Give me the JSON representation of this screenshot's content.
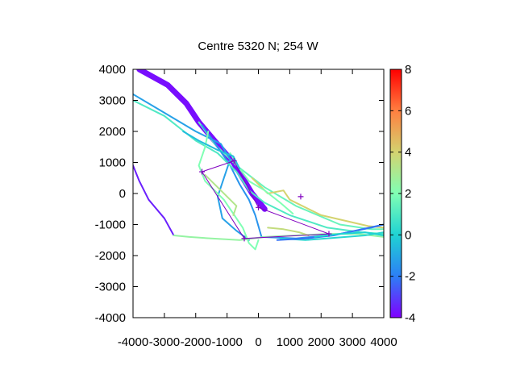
{
  "chart_data": {
    "type": "scatter",
    "title": "Centre 5320 N; 254  W",
    "xlabel": "",
    "ylabel": "",
    "xlim": [
      -4000,
      4000
    ],
    "ylim": [
      -4000,
      4000
    ],
    "xticks": [
      "-4000",
      "-3000",
      "-2000",
      "-1000",
      "0",
      "1000",
      "2000",
      "3000",
      "4000"
    ],
    "yticks": [
      "4000",
      "3000",
      "2000",
      "1000",
      "0",
      "-1000",
      "-2000",
      "-3000",
      "-4000"
    ],
    "colorbar": {
      "range": [
        -4,
        8
      ],
      "ticks": [
        "8",
        "6",
        "4",
        "2",
        "0",
        "-2",
        "-4"
      ],
      "palette": "rainbow",
      "stops": [
        "#8000ff",
        "#2c7ff6",
        "#1fd3d3",
        "#80ffb4",
        "#d4d36f",
        "#ff7f40",
        "#ff0000"
      ]
    },
    "grid": false,
    "legend": "none",
    "markers": [
      {
        "x": 1350,
        "y": -100
      },
      {
        "x": -780,
        "y": 1050
      },
      {
        "x": -1800,
        "y": 700
      },
      {
        "x": 0,
        "y": -450
      },
      {
        "x": 2250,
        "y": -1300
      },
      {
        "x": -450,
        "y": -1450
      }
    ],
    "polygon": [
      {
        "x": -1800,
        "y": 700
      },
      {
        "x": -780,
        "y": 1050
      },
      {
        "x": 0,
        "y": -450
      },
      {
        "x": 2250,
        "y": -1300
      },
      {
        "x": -450,
        "y": -1450
      },
      {
        "x": -1800,
        "y": 700
      }
    ],
    "tracks": [
      {
        "v": -3.8,
        "w": 7,
        "points": [
          [
            -3800,
            4000
          ],
          [
            -2900,
            3500
          ],
          [
            -2300,
            2900
          ],
          [
            -1900,
            2300
          ],
          [
            -1400,
            1700
          ],
          [
            -800,
            1000
          ],
          [
            -200,
            0
          ],
          [
            200,
            -500
          ]
        ]
      },
      {
        "v": 1.5,
        "w": 2,
        "points": [
          [
            -1900,
            2300
          ],
          [
            -1400,
            1600
          ],
          [
            -700,
            900
          ],
          [
            200,
            200
          ],
          [
            1200,
            -400
          ],
          [
            2600,
            -1000
          ],
          [
            3600,
            -1150
          ],
          [
            4000,
            -1150
          ]
        ]
      },
      {
        "v": 4.0,
        "w": 2,
        "points": [
          [
            -200,
            500
          ],
          [
            300,
            0
          ],
          [
            800,
            100
          ],
          [
            1000,
            -200
          ],
          [
            2000,
            -700
          ],
          [
            3500,
            -1050
          ],
          [
            4000,
            -1100
          ]
        ]
      },
      {
        "v": -1.5,
        "w": 2,
        "points": [
          [
            -1800,
            2200
          ],
          [
            -1300,
            1500
          ],
          [
            -900,
            900
          ],
          [
            -600,
            300
          ],
          [
            -300,
            -200
          ],
          [
            -100,
            -700
          ],
          [
            100,
            -1400
          ],
          [
            1200,
            -1450
          ],
          [
            2600,
            -1300
          ],
          [
            3600,
            -1100
          ],
          [
            4000,
            -1000
          ]
        ]
      },
      {
        "v": -1.2,
        "w": 2,
        "points": [
          [
            -4000,
            3200
          ],
          [
            -3000,
            2600
          ],
          [
            -2000,
            2000
          ],
          [
            -1200,
            1600
          ],
          [
            -900,
            1100
          ],
          [
            -1100,
            500
          ],
          [
            -1300,
            -100
          ],
          [
            -1150,
            -800
          ],
          [
            -700,
            -1200
          ],
          [
            -300,
            -1500
          ]
        ]
      },
      {
        "v": 1.0,
        "w": 2,
        "points": [
          [
            -4000,
            3000
          ],
          [
            -3000,
            2500
          ],
          [
            -2000,
            1700
          ],
          [
            -1300,
            1300
          ],
          [
            -700,
            700
          ],
          [
            -300,
            100
          ],
          [
            200,
            -300
          ],
          [
            1000,
            -700
          ],
          [
            2200,
            -1100
          ],
          [
            3300,
            -1250
          ],
          [
            4000,
            -1300
          ]
        ]
      },
      {
        "v": 2.0,
        "w": 2,
        "points": [
          [
            -1600,
            2000
          ],
          [
            -1700,
            1500
          ],
          [
            -1900,
            900
          ],
          [
            -1700,
            400
          ],
          [
            -1100,
            -200
          ],
          [
            -500,
            -1100
          ],
          [
            -300,
            -1600
          ],
          [
            -100,
            -1800
          ],
          [
            0,
            -1500
          ]
        ]
      },
      {
        "v": -3.5,
        "w": 2,
        "points": [
          [
            -4000,
            900
          ],
          [
            -3800,
            400
          ],
          [
            -3500,
            -200
          ],
          [
            -3000,
            -800
          ],
          [
            -2700,
            -1350
          ]
        ]
      },
      {
        "v": 2.5,
        "w": 2,
        "points": [
          [
            -2700,
            -1350
          ],
          [
            -2200,
            -1400
          ],
          [
            -1500,
            -1450
          ],
          [
            -600,
            -1500
          ],
          [
            200,
            -1400
          ],
          [
            1200,
            -1350
          ],
          [
            2200,
            -1300
          ],
          [
            3200,
            -1300
          ],
          [
            4000,
            -1400
          ]
        ]
      },
      {
        "v": 3.6,
        "w": 2,
        "points": [
          [
            300,
            -1100
          ],
          [
            800,
            -1150
          ],
          [
            1300,
            -1250
          ],
          [
            1600,
            -1350
          ]
        ]
      },
      {
        "v": 0.2,
        "w": 2,
        "points": [
          [
            700,
            -1450
          ],
          [
            1500,
            -1500
          ],
          [
            2500,
            -1420
          ],
          [
            3400,
            -1350
          ],
          [
            4000,
            -1250
          ]
        ]
      },
      {
        "v": -2.2,
        "w": 2,
        "points": [
          [
            600,
            -1500
          ],
          [
            1500,
            -1450
          ],
          [
            2400,
            -1350
          ],
          [
            3300,
            -1150
          ],
          [
            4000,
            -1000
          ]
        ]
      },
      {
        "v": 0.0,
        "w": 2,
        "points": [
          [
            1800,
            -1400
          ],
          [
            2600,
            -1300
          ],
          [
            3400,
            -1250
          ],
          [
            4000,
            -1350
          ]
        ]
      },
      {
        "v": 2.0,
        "w": 2,
        "points": [
          [
            -900,
            1300
          ],
          [
            -600,
            800
          ],
          [
            -300,
            400
          ],
          [
            200,
            100
          ],
          [
            700,
            -300
          ],
          [
            1100,
            -650
          ]
        ]
      },
      {
        "v": -0.5,
        "w": 2,
        "points": [
          [
            -2400,
            2000
          ],
          [
            -1900,
            1700
          ],
          [
            -1300,
            1400
          ],
          [
            -800,
            1200
          ],
          [
            -600,
            800
          ]
        ]
      },
      {
        "v": 3.2,
        "w": 2,
        "points": [
          [
            -1700,
            600
          ],
          [
            -1200,
            100
          ],
          [
            -900,
            -200
          ],
          [
            -700,
            -400
          ],
          [
            -800,
            -700
          ]
        ]
      }
    ]
  }
}
